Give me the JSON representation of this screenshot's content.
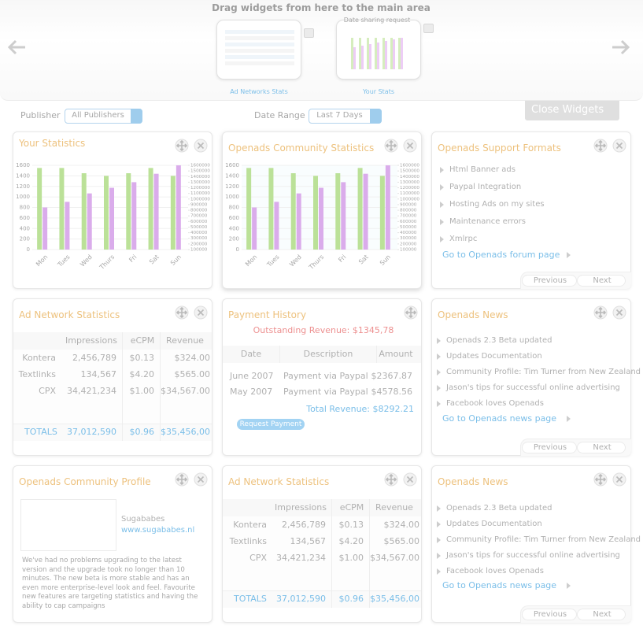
{
  "header": {
    "instruction": "Drag widgets from here to the main area",
    "thumbnails": [
      {
        "label": "Ad Networks Stats"
      },
      {
        "caption": "Date sharing request",
        "label": "Your Stats"
      }
    ]
  },
  "filters": {
    "publisher_label": "Publisher",
    "publisher_value": "All Publishers",
    "date_label": "Date Range",
    "date_value": "Last 7 Days",
    "close_button": "Close Widgets"
  },
  "chart_data": [
    {
      "type": "bar",
      "title": "Your Statistics",
      "categories": [
        "Mon",
        "Tues",
        "Wed",
        "Thurs",
        "Fri",
        "Sat",
        "Sun"
      ],
      "ylim": [
        0,
        1600
      ],
      "yticks": [
        0,
        200,
        400,
        600,
        800,
        1000,
        1200,
        1400,
        1600
      ],
      "y2lim": [
        100000,
        1600000
      ],
      "y2ticks": [
        100000,
        200000,
        300000,
        400000,
        500000,
        600000,
        700000,
        800000,
        900000,
        1000000,
        1100000,
        1200000,
        1300000,
        1400000,
        1500000,
        1600000
      ],
      "grid": true,
      "series": [
        {
          "color": "#8acb4e",
          "values": [
            1550,
            1550,
            1450,
            1400,
            1450,
            1550,
            1400
          ]
        },
        {
          "color": "#c070dc",
          "axis": "y2",
          "values": [
            850000,
            950000,
            1100000,
            1200000,
            1300000,
            1450000,
            1600000
          ]
        }
      ]
    },
    {
      "type": "bar",
      "title": "Openads Community Statistics",
      "categories": [
        "Mon",
        "Tues",
        "Wed",
        "Thurs",
        "Fri",
        "Sat",
        "Sun"
      ],
      "ylim": [
        0,
        1600
      ],
      "yticks": [
        0,
        200,
        400,
        600,
        800,
        1000,
        1200,
        1400,
        1600
      ],
      "y2lim": [
        100000,
        1600000
      ],
      "y2ticks": [
        100000,
        200000,
        300000,
        400000,
        500000,
        600000,
        700000,
        800000,
        900000,
        1000000,
        1100000,
        1200000,
        1300000,
        1400000,
        1500000,
        1600000
      ],
      "grid": true,
      "series": [
        {
          "color": "#8acb4e",
          "values": [
            1550,
            1550,
            1450,
            1400,
            1450,
            1550,
            1400
          ]
        },
        {
          "color": "#c070dc",
          "axis": "y2",
          "values": [
            850000,
            950000,
            1100000,
            1200000,
            1300000,
            1450000,
            1600000
          ]
        }
      ]
    }
  ],
  "widgets": {
    "support_formats": {
      "title": "Openads Support Formats",
      "items": [
        "Html Banner ads",
        "Paypal Integration",
        "Hosting Ads on my sites",
        "Maintenance errors",
        "Xmlrpc"
      ],
      "link": "Go to Openads forum page",
      "previous": "Previous",
      "next": "Next"
    },
    "ad_network_statistics": {
      "title": "Ad Network Statistics",
      "columns": [
        "Impressions",
        "eCPM",
        "Revenue"
      ],
      "rows": [
        [
          "Kontera",
          "2,456,789",
          "$0.13",
          "$324.00"
        ],
        [
          "Textlinks",
          "134,567",
          "$4.20",
          "$565.00"
        ],
        [
          "CPX",
          "34,421,234",
          "$1.00",
          "$34,567.00"
        ]
      ],
      "totals": [
        "TOTALS",
        "37,012,590",
        "$0.96",
        "$35,456,00"
      ]
    },
    "payment_history": {
      "title": "Payment History",
      "outstanding": "Outstanding Revenue: $1345,78",
      "columns": [
        "Date",
        "Description",
        "Amount"
      ],
      "rows": [
        [
          "June 2007",
          "Payment via Paypal",
          "$2367.87"
        ],
        [
          "May 2007",
          "Payment via Paypal",
          "$4578.56"
        ]
      ],
      "total": "Total Revenue: $8292.21",
      "button": "Request Payment"
    },
    "news": {
      "title": "Openads News",
      "items": [
        "Openads 2.3 Beta updated",
        "Updates Documentation",
        "Community Profile: Tim Turner from New Zealand",
        "Jason's tips for successful online advertising",
        "Facebook loves Openads"
      ],
      "link": "Go to Openads news page",
      "previous": "Previous",
      "next": "Next"
    },
    "community_profile": {
      "title": "Openads Community Profile",
      "name": "Sugababes",
      "link": "www.sugababes.nl",
      "text": "We've had no problems upgrading to the latest version and the upgrade took no longer than 10 minutes. The new beta is more stable and has an even more enterprise-level look and feel. Favourite new features are targeting statistics and having the ability to cap campaigns"
    },
    "ad_network_statistics_2": {
      "title": "Ad Network Statistics",
      "columns": [
        "Impressions",
        "eCPM",
        "Revenue"
      ],
      "rows": [
        [
          "Kontera",
          "2,456,789",
          "$0.13",
          "$324.00"
        ],
        [
          "Textlinks",
          "134,567",
          "$4.20",
          "$565.00"
        ],
        [
          "CPX",
          "34,421,234",
          "$1.00",
          "$34,567.00"
        ]
      ],
      "totals": [
        "TOTALS",
        "37,012,590",
        "$0.96",
        "$35,456,00"
      ]
    },
    "news_2": {
      "title": "Openads News",
      "items": [
        "Openads 2.3 Beta updated",
        "Updates Documentation",
        "Community Profile: Tim Turner from New Zealand",
        "Jason's tips for successful online advertising",
        "Facebook loves Openads"
      ],
      "link": "Go to Openads news page",
      "previous": "Previous",
      "next": "Next"
    }
  }
}
